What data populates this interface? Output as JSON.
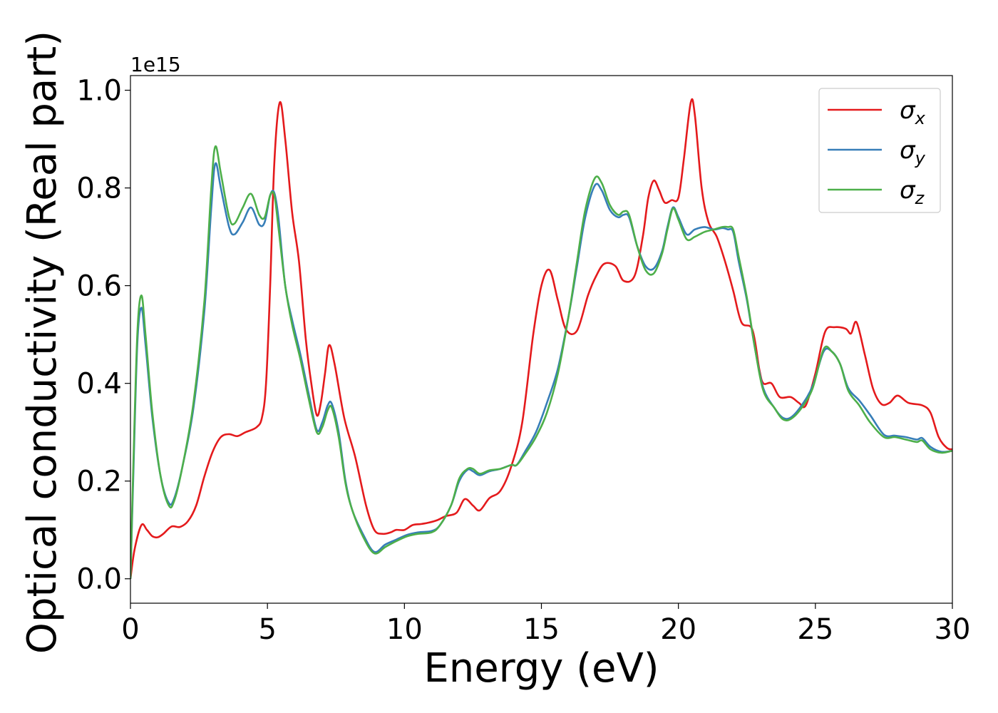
{
  "chart_data": {
    "type": "line",
    "xlabel": "Energy (eV)",
    "ylabel": "Optical conductivity (Real part)",
    "y_offset_label": "1e15",
    "xlim": [
      0,
      30
    ],
    "ylim": [
      -0.05,
      1.03
    ],
    "xticks": [
      0,
      5,
      10,
      15,
      20,
      25,
      30
    ],
    "xtick_labels": [
      "0",
      "5",
      "10",
      "15",
      "20",
      "25",
      "30"
    ],
    "yticks": [
      0.0,
      0.2,
      0.4,
      0.6,
      0.8,
      1.0
    ],
    "ytick_labels": [
      "0.0",
      "0.2",
      "0.4",
      "0.6",
      "0.8",
      "1.0"
    ],
    "grid": false,
    "legend_position": "top-right",
    "series": [
      {
        "name": "σ",
        "subscript": "x",
        "color": "#e41a1c",
        "points": [
          [
            0,
            0
          ],
          [
            0.15,
            0.06
          ],
          [
            0.4,
            0.11
          ],
          [
            0.6,
            0.1
          ],
          [
            0.8,
            0.087
          ],
          [
            1.0,
            0.085
          ],
          [
            1.2,
            0.092
          ],
          [
            1.5,
            0.107
          ],
          [
            1.8,
            0.106
          ],
          [
            2.1,
            0.118
          ],
          [
            2.4,
            0.15
          ],
          [
            2.7,
            0.21
          ],
          [
            3.0,
            0.26
          ],
          [
            3.3,
            0.29
          ],
          [
            3.6,
            0.296
          ],
          [
            3.9,
            0.292
          ],
          [
            4.2,
            0.3
          ],
          [
            4.6,
            0.31
          ],
          [
            4.8,
            0.33
          ],
          [
            4.95,
            0.4
          ],
          [
            5.1,
            0.6
          ],
          [
            5.25,
            0.85
          ],
          [
            5.45,
            0.975
          ],
          [
            5.65,
            0.9
          ],
          [
            5.9,
            0.75
          ],
          [
            6.15,
            0.65
          ],
          [
            6.4,
            0.49
          ],
          [
            6.6,
            0.4
          ],
          [
            6.8,
            0.335
          ],
          [
            6.95,
            0.36
          ],
          [
            7.1,
            0.42
          ],
          [
            7.25,
            0.478
          ],
          [
            7.45,
            0.44
          ],
          [
            7.8,
            0.33
          ],
          [
            8.2,
            0.25
          ],
          [
            8.6,
            0.15
          ],
          [
            8.9,
            0.1
          ],
          [
            9.2,
            0.092
          ],
          [
            9.5,
            0.095
          ],
          [
            9.7,
            0.1
          ],
          [
            10.0,
            0.1
          ],
          [
            10.3,
            0.11
          ],
          [
            10.6,
            0.112
          ],
          [
            10.9,
            0.115
          ],
          [
            11.2,
            0.12
          ],
          [
            11.5,
            0.128
          ],
          [
            11.9,
            0.135
          ],
          [
            12.2,
            0.163
          ],
          [
            12.5,
            0.15
          ],
          [
            12.75,
            0.14
          ],
          [
            13.1,
            0.165
          ],
          [
            13.5,
            0.18
          ],
          [
            13.9,
            0.23
          ],
          [
            14.3,
            0.32
          ],
          [
            14.7,
            0.5
          ],
          [
            15.0,
            0.6
          ],
          [
            15.3,
            0.632
          ],
          [
            15.6,
            0.57
          ],
          [
            15.9,
            0.51
          ],
          [
            16.3,
            0.508
          ],
          [
            16.7,
            0.58
          ],
          [
            17.0,
            0.62
          ],
          [
            17.3,
            0.645
          ],
          [
            17.7,
            0.64
          ],
          [
            18.0,
            0.61
          ],
          [
            18.4,
            0.62
          ],
          [
            18.7,
            0.7
          ],
          [
            18.9,
            0.78
          ],
          [
            19.1,
            0.815
          ],
          [
            19.3,
            0.795
          ],
          [
            19.5,
            0.77
          ],
          [
            19.75,
            0.775
          ],
          [
            20.0,
            0.78
          ],
          [
            20.2,
            0.86
          ],
          [
            20.45,
            0.975
          ],
          [
            20.6,
            0.95
          ],
          [
            20.85,
            0.8
          ],
          [
            21.1,
            0.73
          ],
          [
            21.4,
            0.7
          ],
          [
            21.7,
            0.65
          ],
          [
            22.0,
            0.59
          ],
          [
            22.3,
            0.525
          ],
          [
            22.7,
            0.51
          ],
          [
            22.95,
            0.43
          ],
          [
            23.1,
            0.4
          ],
          [
            23.4,
            0.4
          ],
          [
            23.7,
            0.372
          ],
          [
            24.1,
            0.372
          ],
          [
            24.4,
            0.36
          ],
          [
            24.65,
            0.355
          ],
          [
            25.0,
            0.42
          ],
          [
            25.35,
            0.505
          ],
          [
            25.7,
            0.515
          ],
          [
            26.1,
            0.512
          ],
          [
            26.3,
            0.502
          ],
          [
            26.5,
            0.525
          ],
          [
            26.8,
            0.46
          ],
          [
            27.1,
            0.39
          ],
          [
            27.4,
            0.358
          ],
          [
            27.7,
            0.36
          ],
          [
            28.0,
            0.375
          ],
          [
            28.4,
            0.36
          ],
          [
            28.9,
            0.355
          ],
          [
            29.2,
            0.34
          ],
          [
            29.5,
            0.29
          ],
          [
            29.8,
            0.268
          ],
          [
            30,
            0.265
          ]
        ]
      },
      {
        "name": "σ",
        "subscript": "y",
        "color": "#377eb8",
        "points": [
          [
            0,
            0
          ],
          [
            0.1,
            0.2
          ],
          [
            0.25,
            0.48
          ],
          [
            0.4,
            0.555
          ],
          [
            0.55,
            0.48
          ],
          [
            0.8,
            0.33
          ],
          [
            1.1,
            0.21
          ],
          [
            1.4,
            0.155
          ],
          [
            1.6,
            0.165
          ],
          [
            1.9,
            0.23
          ],
          [
            2.3,
            0.35
          ],
          [
            2.7,
            0.55
          ],
          [
            2.95,
            0.76
          ],
          [
            3.1,
            0.85
          ],
          [
            3.3,
            0.8
          ],
          [
            3.6,
            0.72
          ],
          [
            3.8,
            0.705
          ],
          [
            4.1,
            0.73
          ],
          [
            4.4,
            0.76
          ],
          [
            4.7,
            0.725
          ],
          [
            4.9,
            0.73
          ],
          [
            5.1,
            0.785
          ],
          [
            5.25,
            0.79
          ],
          [
            5.4,
            0.74
          ],
          [
            5.65,
            0.6
          ],
          [
            5.9,
            0.53
          ],
          [
            6.2,
            0.46
          ],
          [
            6.5,
            0.38
          ],
          [
            6.8,
            0.305
          ],
          [
            7.0,
            0.32
          ],
          [
            7.2,
            0.355
          ],
          [
            7.35,
            0.358
          ],
          [
            7.6,
            0.3
          ],
          [
            7.85,
            0.2
          ],
          [
            8.1,
            0.14
          ],
          [
            8.5,
            0.09
          ],
          [
            8.9,
            0.055
          ],
          [
            9.3,
            0.07
          ],
          [
            9.7,
            0.08
          ],
          [
            10.1,
            0.09
          ],
          [
            10.5,
            0.095
          ],
          [
            11.0,
            0.098
          ],
          [
            11.3,
            0.11
          ],
          [
            11.7,
            0.15
          ],
          [
            12.0,
            0.2
          ],
          [
            12.3,
            0.223
          ],
          [
            12.5,
            0.22
          ],
          [
            12.75,
            0.212
          ],
          [
            13.1,
            0.22
          ],
          [
            13.5,
            0.225
          ],
          [
            13.9,
            0.233
          ],
          [
            14.1,
            0.233
          ],
          [
            14.4,
            0.26
          ],
          [
            14.8,
            0.3
          ],
          [
            15.2,
            0.36
          ],
          [
            15.6,
            0.43
          ],
          [
            16.0,
            0.54
          ],
          [
            16.3,
            0.64
          ],
          [
            16.6,
            0.74
          ],
          [
            16.95,
            0.805
          ],
          [
            17.2,
            0.795
          ],
          [
            17.5,
            0.755
          ],
          [
            17.8,
            0.74
          ],
          [
            18.0,
            0.745
          ],
          [
            18.2,
            0.74
          ],
          [
            18.5,
            0.68
          ],
          [
            18.8,
            0.64
          ],
          [
            19.1,
            0.635
          ],
          [
            19.4,
            0.67
          ],
          [
            19.6,
            0.72
          ],
          [
            19.8,
            0.76
          ],
          [
            20.0,
            0.74
          ],
          [
            20.3,
            0.705
          ],
          [
            20.6,
            0.715
          ],
          [
            20.95,
            0.72
          ],
          [
            21.3,
            0.715
          ],
          [
            21.6,
            0.718
          ],
          [
            21.8,
            0.715
          ],
          [
            22.0,
            0.71
          ],
          [
            22.2,
            0.65
          ],
          [
            22.5,
            0.57
          ],
          [
            22.8,
            0.47
          ],
          [
            23.1,
            0.39
          ],
          [
            23.5,
            0.35
          ],
          [
            23.8,
            0.33
          ],
          [
            24.1,
            0.33
          ],
          [
            24.5,
            0.355
          ],
          [
            24.9,
            0.395
          ],
          [
            25.3,
            0.465
          ],
          [
            25.6,
            0.465
          ],
          [
            25.9,
            0.44
          ],
          [
            26.2,
            0.39
          ],
          [
            26.6,
            0.365
          ],
          [
            27.0,
            0.335
          ],
          [
            27.5,
            0.295
          ],
          [
            27.9,
            0.293
          ],
          [
            28.3,
            0.29
          ],
          [
            28.7,
            0.285
          ],
          [
            28.9,
            0.288
          ],
          [
            29.2,
            0.27
          ],
          [
            29.6,
            0.26
          ],
          [
            30,
            0.262
          ]
        ]
      },
      {
        "name": "σ",
        "subscript": "z",
        "color": "#4daf4a",
        "points": [
          [
            0,
            0
          ],
          [
            0.1,
            0.22
          ],
          [
            0.25,
            0.5
          ],
          [
            0.4,
            0.58
          ],
          [
            0.55,
            0.5
          ],
          [
            0.8,
            0.34
          ],
          [
            1.1,
            0.21
          ],
          [
            1.4,
            0.15
          ],
          [
            1.6,
            0.16
          ],
          [
            1.9,
            0.23
          ],
          [
            2.3,
            0.36
          ],
          [
            2.7,
            0.57
          ],
          [
            2.95,
            0.8
          ],
          [
            3.1,
            0.885
          ],
          [
            3.3,
            0.83
          ],
          [
            3.6,
            0.74
          ],
          [
            3.8,
            0.727
          ],
          [
            4.1,
            0.76
          ],
          [
            4.4,
            0.788
          ],
          [
            4.7,
            0.745
          ],
          [
            4.9,
            0.74
          ],
          [
            5.1,
            0.785
          ],
          [
            5.25,
            0.785
          ],
          [
            5.4,
            0.72
          ],
          [
            5.65,
            0.6
          ],
          [
            5.9,
            0.52
          ],
          [
            6.2,
            0.45
          ],
          [
            6.5,
            0.37
          ],
          [
            6.8,
            0.3
          ],
          [
            7.0,
            0.31
          ],
          [
            7.2,
            0.345
          ],
          [
            7.35,
            0.35
          ],
          [
            7.6,
            0.29
          ],
          [
            7.85,
            0.195
          ],
          [
            8.1,
            0.14
          ],
          [
            8.5,
            0.085
          ],
          [
            8.9,
            0.052
          ],
          [
            9.3,
            0.065
          ],
          [
            9.7,
            0.077
          ],
          [
            10.1,
            0.087
          ],
          [
            10.5,
            0.092
          ],
          [
            11.0,
            0.095
          ],
          [
            11.3,
            0.11
          ],
          [
            11.7,
            0.15
          ],
          [
            12.0,
            0.205
          ],
          [
            12.3,
            0.225
          ],
          [
            12.5,
            0.225
          ],
          [
            12.75,
            0.215
          ],
          [
            13.1,
            0.222
          ],
          [
            13.5,
            0.225
          ],
          [
            13.9,
            0.233
          ],
          [
            14.1,
            0.233
          ],
          [
            14.4,
            0.255
          ],
          [
            14.8,
            0.29
          ],
          [
            15.2,
            0.34
          ],
          [
            15.6,
            0.42
          ],
          [
            16.0,
            0.54
          ],
          [
            16.3,
            0.65
          ],
          [
            16.6,
            0.755
          ],
          [
            16.95,
            0.82
          ],
          [
            17.2,
            0.81
          ],
          [
            17.5,
            0.765
          ],
          [
            17.8,
            0.745
          ],
          [
            18.0,
            0.752
          ],
          [
            18.2,
            0.745
          ],
          [
            18.5,
            0.68
          ],
          [
            18.8,
            0.632
          ],
          [
            19.1,
            0.625
          ],
          [
            19.4,
            0.665
          ],
          [
            19.6,
            0.715
          ],
          [
            19.8,
            0.758
          ],
          [
            20.0,
            0.735
          ],
          [
            20.3,
            0.695
          ],
          [
            20.6,
            0.7
          ],
          [
            20.95,
            0.71
          ],
          [
            21.3,
            0.715
          ],
          [
            21.6,
            0.72
          ],
          [
            21.8,
            0.72
          ],
          [
            22.0,
            0.715
          ],
          [
            22.2,
            0.66
          ],
          [
            22.5,
            0.575
          ],
          [
            22.8,
            0.47
          ],
          [
            23.1,
            0.385
          ],
          [
            23.5,
            0.35
          ],
          [
            23.8,
            0.327
          ],
          [
            24.1,
            0.327
          ],
          [
            24.5,
            0.35
          ],
          [
            24.9,
            0.39
          ],
          [
            25.3,
            0.47
          ],
          [
            25.6,
            0.465
          ],
          [
            25.9,
            0.44
          ],
          [
            26.2,
            0.385
          ],
          [
            26.6,
            0.355
          ],
          [
            27.0,
            0.32
          ],
          [
            27.5,
            0.29
          ],
          [
            27.9,
            0.29
          ],
          [
            28.3,
            0.285
          ],
          [
            28.7,
            0.28
          ],
          [
            28.9,
            0.283
          ],
          [
            29.2,
            0.265
          ],
          [
            29.6,
            0.258
          ],
          [
            30,
            0.262
          ]
        ]
      }
    ]
  }
}
